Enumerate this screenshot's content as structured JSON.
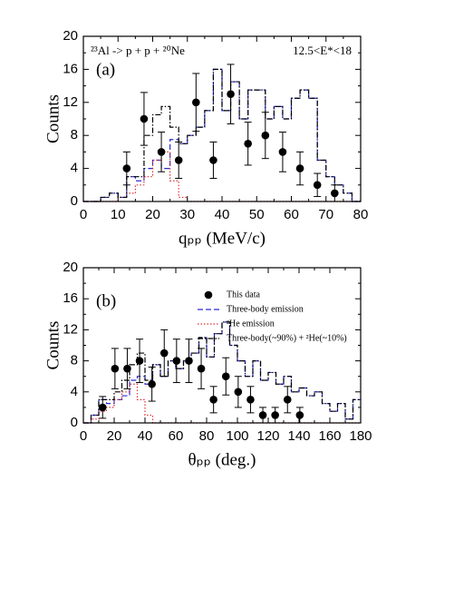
{
  "chart_data": [
    {
      "type": "histogram",
      "panel": "(a)",
      "annotation": "²³Al -> p + p + ²⁰Ne",
      "annotation2": "12.5<E*<18",
      "x_label": "qₚₚ (MeV/c)",
      "y_label": "Counts",
      "xlim": [
        0,
        80
      ],
      "ylim": [
        0,
        20
      ],
      "xticks": [
        0,
        10,
        20,
        30,
        40,
        50,
        60,
        70,
        80
      ],
      "yticks": [
        0,
        4,
        8,
        12,
        16,
        20
      ],
      "bins": [
        0,
        2.5,
        5,
        7.5,
        10,
        12.5,
        15,
        17.5,
        20,
        22.5,
        25,
        27.5,
        30,
        32.5,
        35,
        37.5,
        40,
        42.5,
        45,
        47.5,
        50,
        52.5,
        55,
        57.5,
        60,
        62.5,
        65,
        67.5,
        70,
        72.5,
        75,
        77.5,
        80
      ],
      "series": [
        {
          "color": "#2b2bd0",
          "style": "dashed",
          "values": [
            0,
            0,
            0.5,
            1,
            0.5,
            3,
            2.5,
            4,
            5,
            4,
            7.5,
            7,
            8,
            9,
            11,
            16,
            11,
            14.5,
            10,
            13.5,
            13.5,
            10,
            11.5,
            10,
            12.5,
            13.5,
            12.5,
            5,
            3,
            2,
            1,
            0
          ]
        },
        {
          "color": "#e03030",
          "style": "dotted",
          "values": [
            0,
            0,
            0,
            0,
            0.5,
            1,
            2,
            3,
            5,
            6,
            2.5,
            0.5,
            0,
            0,
            0,
            0,
            0,
            0,
            0,
            0,
            0,
            0,
            0,
            0,
            0,
            0,
            0,
            0,
            0,
            0,
            0,
            0
          ]
        },
        {
          "color": "#000000",
          "style": "dashdot",
          "values": [
            0,
            0,
            0.5,
            1,
            0.5,
            3,
            3,
            8,
            10.5,
            11.5,
            9,
            7,
            8,
            9,
            11,
            16,
            11,
            14.5,
            10,
            13.5,
            13.5,
            10,
            11.5,
            10,
            12.5,
            13.5,
            12.5,
            5,
            3,
            2,
            1,
            0
          ]
        }
      ],
      "points": {
        "color": "#000000",
        "x": [
          12.5,
          17.5,
          22.5,
          27.5,
          32.5,
          37.5,
          42.5,
          47.5,
          52.5,
          57.5,
          62.5,
          67.5,
          72.5
        ],
        "values": [
          4,
          10,
          6,
          5,
          12,
          5,
          13,
          7,
          8,
          6,
          4,
          2,
          1
        ],
        "errors": [
          2,
          3.2,
          2.4,
          2.2,
          3.5,
          2.2,
          3.6,
          2.6,
          2.8,
          2.4,
          2,
          1.4,
          1
        ]
      }
    },
    {
      "type": "histogram",
      "panel": "(b)",
      "x_label": "θₚₚ (deg.)",
      "y_label": "Counts",
      "xlim": [
        0,
        180
      ],
      "ylim": [
        0,
        20
      ],
      "xticks": [
        0,
        20,
        40,
        60,
        80,
        100,
        120,
        140,
        160,
        180
      ],
      "yticks": [
        0,
        4,
        8,
        12,
        16,
        20
      ],
      "bins": [
        0,
        5,
        10,
        15,
        20,
        25,
        30,
        35,
        40,
        45,
        50,
        55,
        60,
        65,
        70,
        75,
        80,
        85,
        90,
        95,
        100,
        105,
        110,
        115,
        120,
        125,
        130,
        135,
        140,
        145,
        150,
        155,
        160,
        165,
        170,
        175,
        180
      ],
      "series": [
        {
          "name": "Three-body emission",
          "color": "#2b2bd0",
          "style": "dashed",
          "values": [
            0,
            1,
            3,
            2.5,
            3,
            3.5,
            5.5,
            6,
            5,
            7.5,
            6,
            8,
            7,
            8,
            9,
            11,
            8.5,
            11.5,
            13,
            10,
            8,
            6,
            8,
            5.5,
            6.5,
            5,
            6,
            4,
            4.5,
            3.5,
            4,
            2.5,
            1.5,
            2.5,
            0.5,
            3
          ]
        },
        {
          "name": "²He emission",
          "color": "#e03030",
          "style": "dotted",
          "values": [
            0,
            0.5,
            1.5,
            2,
            3,
            4,
            5,
            3,
            1,
            0,
            0,
            0,
            0,
            0,
            0,
            0,
            0,
            0,
            0,
            0,
            0,
            0,
            0,
            0,
            0,
            0,
            0,
            0,
            0,
            0,
            0,
            0,
            0,
            0,
            0,
            0
          ]
        },
        {
          "name": "Three-body(~90%) + ²He(~10%)",
          "color": "#000000",
          "style": "dashdot",
          "values": [
            0,
            1,
            3,
            3,
            4,
            5.5,
            7.5,
            9,
            5.5,
            7.5,
            6,
            8,
            7,
            8,
            9,
            11,
            8.5,
            11.5,
            13,
            10,
            8,
            6,
            8,
            5.5,
            6.5,
            5,
            6,
            4,
            4.5,
            3.5,
            4,
            2.5,
            1.5,
            2.5,
            0.5,
            3
          ]
        }
      ],
      "points": {
        "name": "This data",
        "color": "#000000",
        "x": [
          12.5,
          20.5,
          28.5,
          36.5,
          44.5,
          52.5,
          60.5,
          68.5,
          76.5,
          84.5,
          92.5,
          100.5,
          108.5,
          116.5,
          124.5,
          132.5,
          140.5
        ],
        "values": [
          2,
          7,
          7,
          8,
          5,
          9,
          8,
          8,
          7,
          3,
          6,
          4,
          3,
          1,
          1,
          3,
          1
        ],
        "errors": [
          1.4,
          2.6,
          2.6,
          2.8,
          2.2,
          3,
          2.8,
          2.8,
          2.6,
          1.7,
          2.4,
          2,
          1.7,
          1,
          1,
          1.7,
          1
        ]
      }
    }
  ]
}
